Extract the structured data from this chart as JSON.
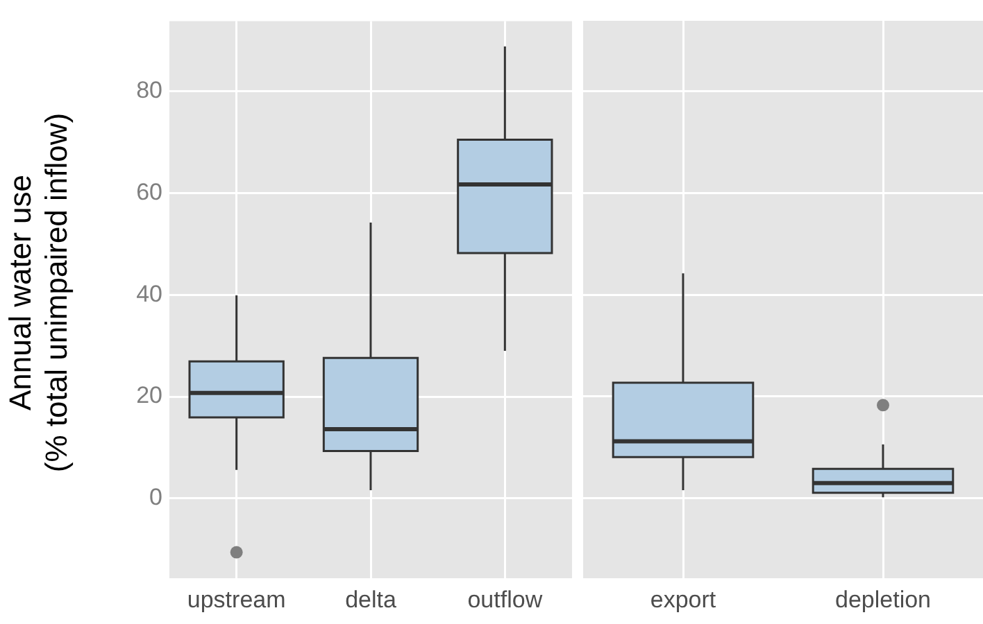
{
  "chart_data": [
    {
      "type": "box",
      "ylabel": "Annual water use\n(% total unimpaired inflow)",
      "categories": [
        "upstream",
        "delta",
        "outflow"
      ],
      "ylim": [
        -15.7,
        93.8
      ],
      "yticks": [
        0,
        20,
        40,
        60,
        80
      ],
      "grid": true,
      "series": [
        {
          "color": "#b3cde3",
          "boxes": [
            {
              "low": 5.6,
              "q1": 15.9,
              "median": 20.7,
              "q3": 26.9,
              "high": 39.9,
              "outliers": [
                -10.6
              ]
            },
            {
              "low": 1.6,
              "q1": 9.3,
              "median": 13.6,
              "q3": 27.6,
              "high": 54.2
            },
            {
              "low": 29,
              "q1": 48.2,
              "median": 61.7,
              "q3": 70.5,
              "high": 88.8
            }
          ]
        }
      ]
    },
    {
      "type": "box",
      "categories": [
        "export",
        "depletion"
      ],
      "ylim": [
        -15.7,
        93.8
      ],
      "yticks": [
        0,
        20,
        40,
        60,
        80
      ],
      "grid": true,
      "tick_labels": "x",
      "series": [
        {
          "color": "#b3cde3",
          "boxes": [
            {
              "low": 1.6,
              "q1": 8.1,
              "median": 11.2,
              "q3": 22.7,
              "high": 44.2
            },
            {
              "low": 0.2,
              "q1": 1.1,
              "median": 3.0,
              "q3": 5.8,
              "high": 10.6,
              "outliers": [
                18.3
              ]
            }
          ]
        }
      ]
    }
  ]
}
